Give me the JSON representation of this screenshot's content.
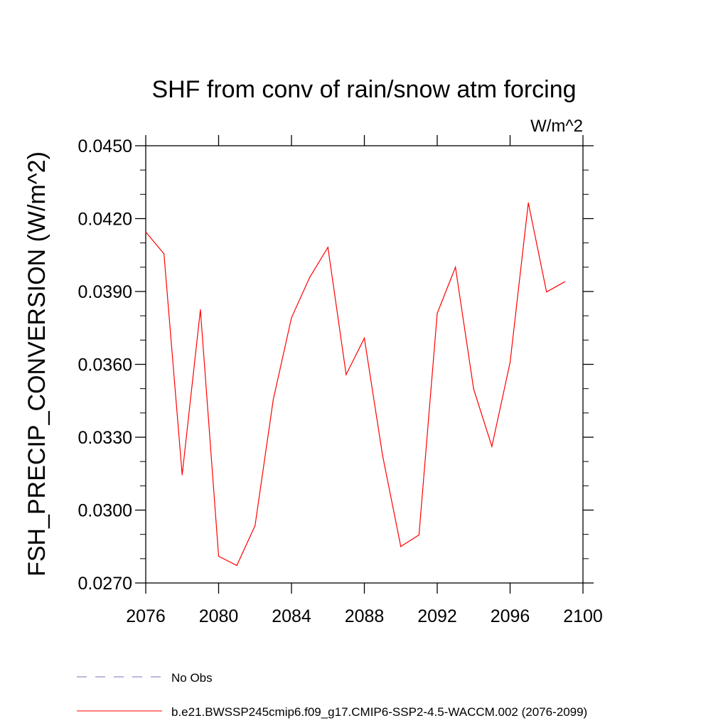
{
  "chart_data": {
    "type": "line",
    "title": "SHF from conv of rain/snow atm forcing",
    "units_label": "W/m^2",
    "ylabel": "FSH_PRECIP_CONVERSION  (W/m^2)",
    "xlabel": "",
    "xlim": [
      2076,
      2100
    ],
    "ylim": [
      0.027,
      0.045
    ],
    "x_ticks": [
      2076,
      2080,
      2084,
      2088,
      2092,
      2096,
      2100
    ],
    "x_tick_labels": [
      "2076",
      "2080",
      "2084",
      "2088",
      "2092",
      "2096",
      "2100"
    ],
    "y_ticks": [
      0.027,
      0.03,
      0.033,
      0.036,
      0.039,
      0.042,
      0.045
    ],
    "y_tick_labels": [
      "0.0270",
      "0.0300",
      "0.0330",
      "0.0360",
      "0.0390",
      "0.0420",
      "0.0450"
    ],
    "grid": false,
    "legend_position": "bottom",
    "series": [
      {
        "name": "b.e21.BWSSP245cmip6.f09_g17.CMIP6-SSP2-4.5-WACCM.002 (2076-2099)",
        "color": "#ff0000",
        "style": "solid",
        "x": [
          2076,
          2077,
          2078,
          2079,
          2080,
          2081,
          2082,
          2083,
          2084,
          2085,
          2086,
          2087,
          2088,
          2089,
          2090,
          2091,
          2092,
          2093,
          2094,
          2095,
          2096,
          2097,
          2098,
          2099
        ],
        "y": [
          0.04145,
          0.04055,
          0.03145,
          0.03825,
          0.0281,
          0.02772,
          0.02936,
          0.03455,
          0.03792,
          0.03958,
          0.04082,
          0.03558,
          0.03708,
          0.03225,
          0.0285,
          0.02898,
          0.0381,
          0.04,
          0.03498,
          0.03262,
          0.03608,
          0.04265,
          0.03898,
          0.0394
        ]
      }
    ],
    "legend": [
      {
        "label": "No Obs",
        "color": "#7c6fb8",
        "style": "dashed"
      },
      {
        "label": "b.e21.BWSSP245cmip6.f09_g17.CMIP6-SSP2-4.5-WACCM.002 (2076-2099)",
        "color": "#ff0000",
        "style": "solid"
      }
    ]
  }
}
